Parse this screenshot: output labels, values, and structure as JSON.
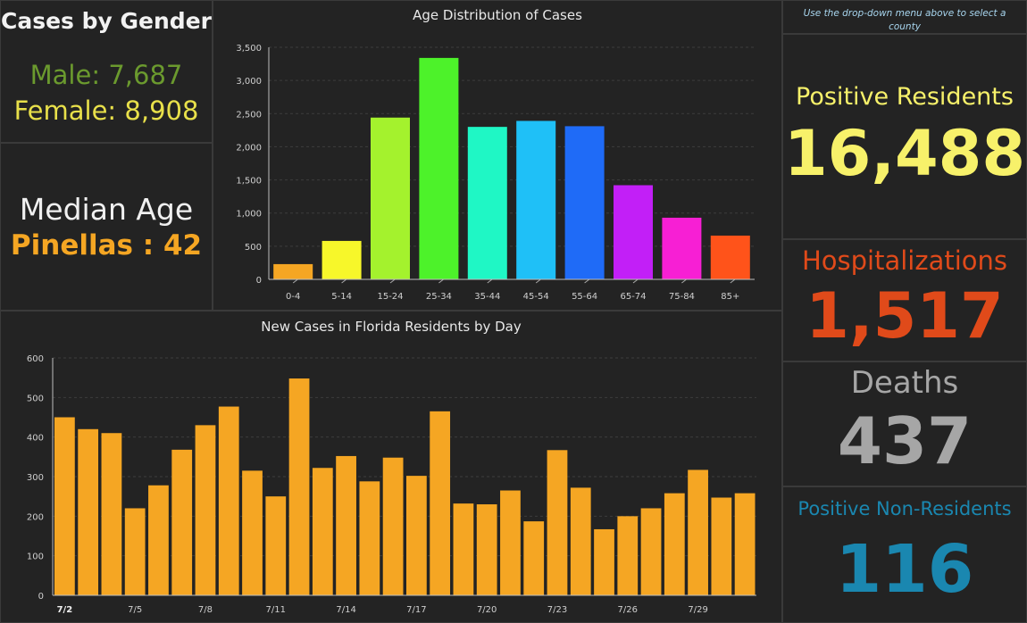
{
  "gender": {
    "title": "Cases by Gender",
    "male": "Male: 7,687",
    "female": "Female: 8,908",
    "male_color": "#6b9a2e",
    "female_color": "#e8e04a"
  },
  "median": {
    "label": "Median Age",
    "value": "Pinellas : 42",
    "value_color": "#f5a623"
  },
  "hint": "Use the drop-down menu above to select a county",
  "positive": {
    "label": "Positive Residents",
    "value": "16,488",
    "color": "#f7f16a"
  },
  "hospital": {
    "label": "Hospitalizations",
    "value": "1,517",
    "color": "#e04a1a"
  },
  "deaths": {
    "label": "Deaths",
    "value": "437",
    "color": "#a6a6a6"
  },
  "nonres": {
    "label": "Positive Non-Residents",
    "value": "116",
    "color": "#1a87b0"
  },
  "chart_data": [
    {
      "type": "bar",
      "title": "Age Distribution of Cases",
      "categories": [
        "0-4",
        "5-14",
        "15-24",
        "25-34",
        "35-44",
        "45-54",
        "55-64",
        "65-74",
        "75-84",
        "85+"
      ],
      "values": [
        230,
        580,
        2440,
        3340,
        2300,
        2390,
        2310,
        1420,
        930,
        660
      ],
      "colors": [
        "#f5a623",
        "#f7f72a",
        "#a4f22d",
        "#4df22a",
        "#1ff7c5",
        "#1fc0f7",
        "#1f6bf7",
        "#c21ff7",
        "#f71fd4",
        "#ff531a"
      ],
      "yticks": [
        "0",
        "500",
        "1,000",
        "1,500",
        "2,000",
        "2,500",
        "3,000",
        "3,500"
      ],
      "ylim": [
        0,
        3500
      ]
    },
    {
      "type": "bar",
      "title": "New Cases in Florida Residents by Day",
      "values": [
        450,
        420,
        410,
        220,
        278,
        368,
        430,
        477,
        315,
        250,
        548,
        322,
        352,
        288,
        348,
        302,
        465,
        232,
        230,
        265,
        187,
        367,
        272,
        167,
        200,
        220,
        258,
        317,
        247,
        258
      ],
      "xticks": [
        {
          "index": 0,
          "label": "7/2"
        },
        {
          "index": 3,
          "label": "7/5"
        },
        {
          "index": 6,
          "label": "7/8"
        },
        {
          "index": 9,
          "label": "7/11"
        },
        {
          "index": 12,
          "label": "7/14"
        },
        {
          "index": 15,
          "label": "7/17"
        },
        {
          "index": 18,
          "label": "7/20"
        },
        {
          "index": 21,
          "label": "7/23"
        },
        {
          "index": 24,
          "label": "7/26"
        },
        {
          "index": 27,
          "label": "7/29"
        }
      ],
      "yticks": [
        "0",
        "100",
        "200",
        "300",
        "400",
        "500",
        "600"
      ],
      "ylim": [
        0,
        600
      ],
      "bar_color": "#f5a623"
    }
  ]
}
